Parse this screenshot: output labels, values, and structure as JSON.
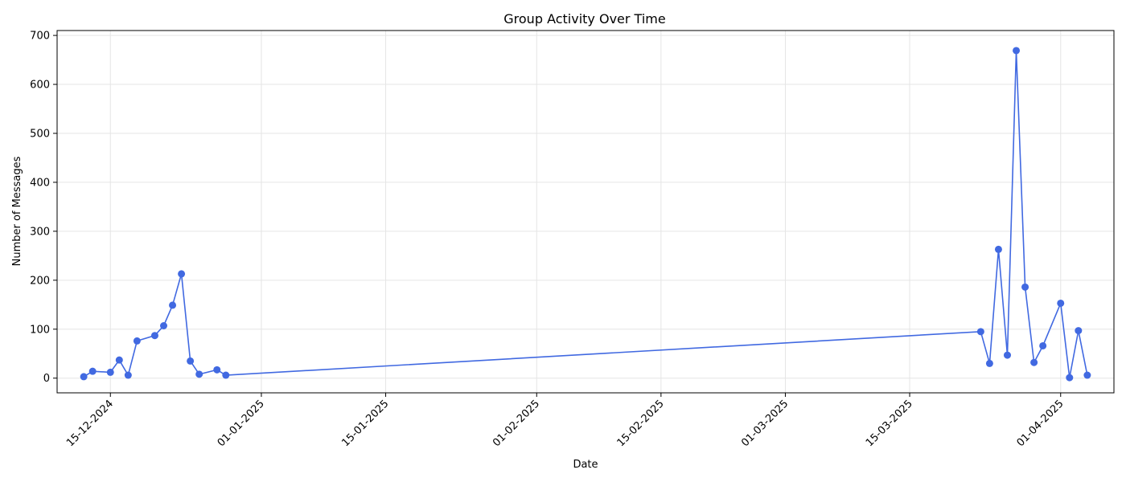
{
  "chart_data": {
    "type": "line",
    "title": "Group Activity Over Time",
    "xlabel": "Date",
    "ylabel": "Number of Messages",
    "grid": true,
    "legend": "none",
    "xlim": [
      "2024-12-09",
      "2025-04-07"
    ],
    "ylim": [
      -30,
      710
    ],
    "yticks": [
      0,
      100,
      200,
      300,
      400,
      500,
      600,
      700
    ],
    "xticks": [
      {
        "date": "2024-12-15",
        "label": "15-12-2024"
      },
      {
        "date": "2025-01-01",
        "label": "01-01-2025"
      },
      {
        "date": "2025-01-15",
        "label": "15-01-2025"
      },
      {
        "date": "2025-02-01",
        "label": "01-02-2025"
      },
      {
        "date": "2025-02-15",
        "label": "15-02-2025"
      },
      {
        "date": "2025-03-01",
        "label": "01-03-2025"
      },
      {
        "date": "2025-03-15",
        "label": "15-03-2025"
      },
      {
        "date": "2025-04-01",
        "label": "01-04-2025"
      }
    ],
    "series": [
      {
        "color": "#4169e1",
        "points": [
          {
            "x": "2024-12-12",
            "y": 3
          },
          {
            "x": "2024-12-13",
            "y": 14
          },
          {
            "x": "2024-12-15",
            "y": 12
          },
          {
            "x": "2024-12-16",
            "y": 37
          },
          {
            "x": "2024-12-17",
            "y": 6
          },
          {
            "x": "2024-12-18",
            "y": 76
          },
          {
            "x": "2024-12-20",
            "y": 87
          },
          {
            "x": "2024-12-21",
            "y": 107
          },
          {
            "x": "2024-12-22",
            "y": 149
          },
          {
            "x": "2024-12-23",
            "y": 213
          },
          {
            "x": "2024-12-24",
            "y": 35
          },
          {
            "x": "2024-12-25",
            "y": 8
          },
          {
            "x": "2024-12-27",
            "y": 17
          },
          {
            "x": "2024-12-28",
            "y": 6
          },
          {
            "x": "2025-03-23",
            "y": 95
          },
          {
            "x": "2025-03-24",
            "y": 30
          },
          {
            "x": "2025-03-25",
            "y": 263
          },
          {
            "x": "2025-03-26",
            "y": 47
          },
          {
            "x": "2025-03-27",
            "y": 669
          },
          {
            "x": "2025-03-28",
            "y": 186
          },
          {
            "x": "2025-03-29",
            "y": 32
          },
          {
            "x": "2025-03-30",
            "y": 66
          },
          {
            "x": "2025-04-01",
            "y": 153
          },
          {
            "x": "2025-04-02",
            "y": 1
          },
          {
            "x": "2025-04-03",
            "y": 97
          },
          {
            "x": "2025-04-04",
            "y": 6
          }
        ]
      }
    ]
  }
}
